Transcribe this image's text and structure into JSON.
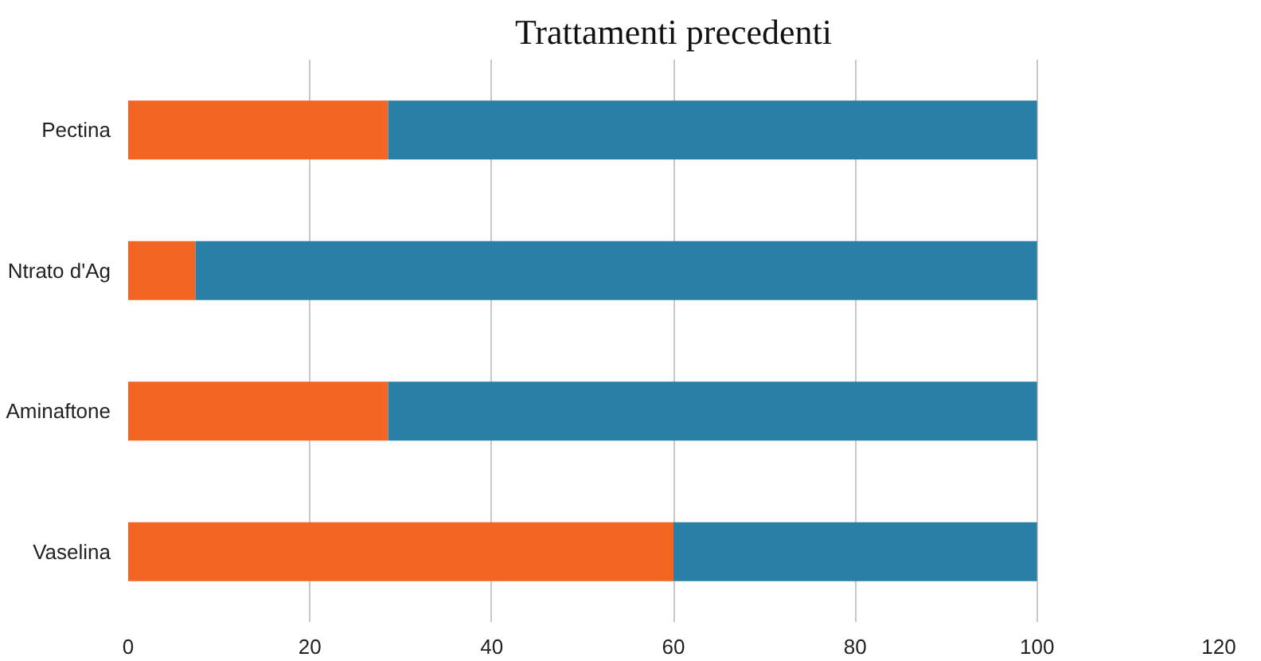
{
  "chart_data": {
    "type": "bar",
    "title": "Trattamenti precedenti",
    "orientation": "horizontal",
    "stacked": true,
    "categories": [
      "Pectina",
      "Ntrato d'Ag",
      "Aminaftone",
      "Vaselina"
    ],
    "series": [
      {
        "color": "#f26522",
        "values": [
          28.6,
          7.4,
          28.6,
          60
        ]
      },
      {
        "color": "#2a7fa6",
        "values": [
          71.4,
          92.6,
          71.4,
          40
        ]
      }
    ],
    "xlim": [
      0,
      120
    ],
    "xticks": [
      0,
      20,
      40,
      60,
      80,
      100,
      120
    ],
    "grid": "x"
  }
}
